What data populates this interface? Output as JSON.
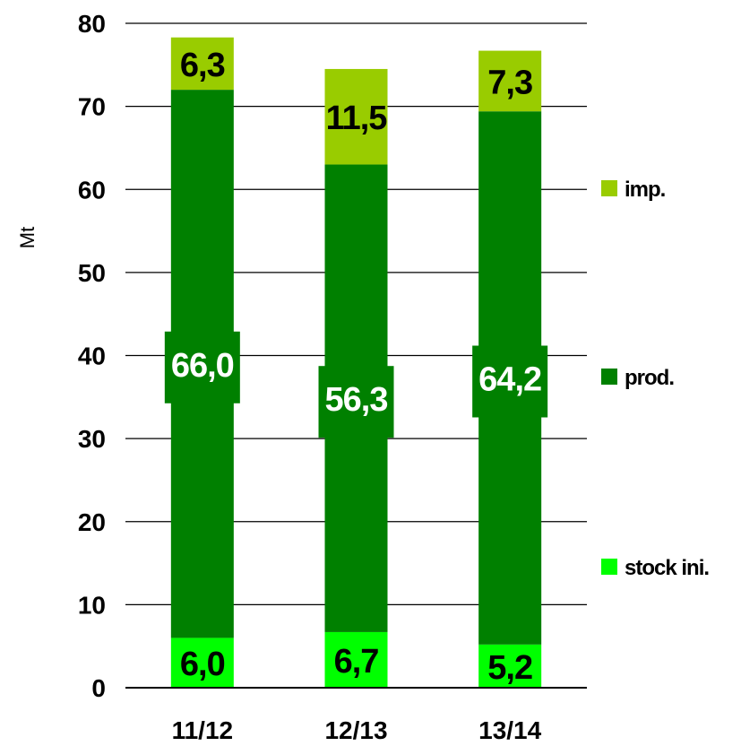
{
  "chart_data": {
    "type": "bar",
    "stacked": true,
    "ylabel": "Mt",
    "ylim": [
      0,
      80
    ],
    "yticks": [
      0,
      10,
      20,
      30,
      40,
      50,
      60,
      70,
      80
    ],
    "grid": true,
    "legend_position": "right",
    "categories": [
      "11/12",
      "12/13",
      "13/14"
    ],
    "series": [
      {
        "name": "stock ini.",
        "color": "#00ff00",
        "label_color": "#000000",
        "values": [
          6.0,
          6.7,
          5.2
        ],
        "labels": [
          "6,0",
          "6,7",
          "5,2"
        ]
      },
      {
        "name": "prod.",
        "color": "#008000",
        "label_color": "#ffffff",
        "values": [
          66.0,
          56.3,
          64.2
        ],
        "labels": [
          "66,0",
          "56,3",
          "64,2"
        ]
      },
      {
        "name": "imp.",
        "color": "#99cc00",
        "label_color": "#000000",
        "values": [
          6.3,
          11.5,
          7.3
        ],
        "labels": [
          "6,3",
          "11,5",
          "7,3"
        ]
      }
    ]
  }
}
